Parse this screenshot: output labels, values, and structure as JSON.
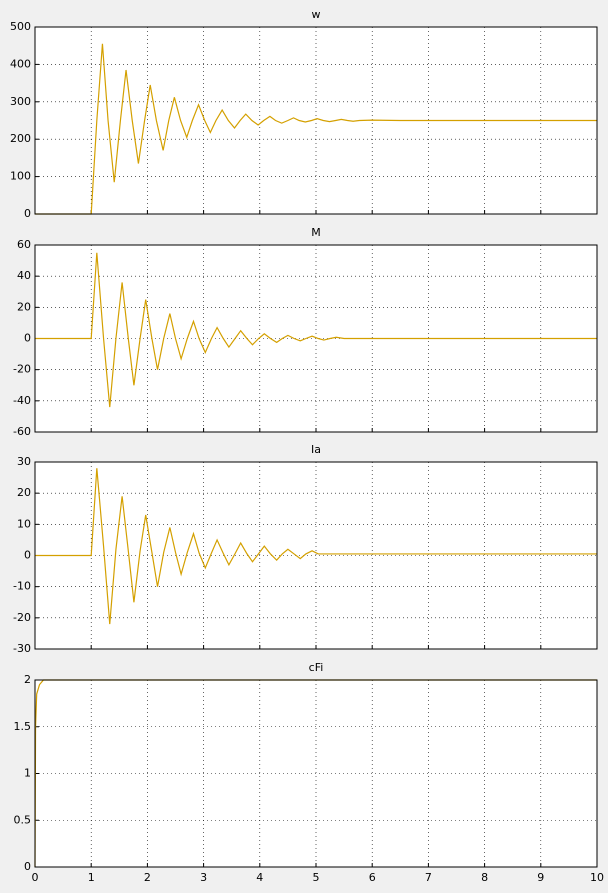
{
  "chart_data": [
    {
      "type": "line",
      "title": "w",
      "color": "#d4a000",
      "x": [
        0,
        1.0,
        1.1,
        1.2,
        1.3,
        1.41,
        1.52,
        1.62,
        1.73,
        1.84,
        1.95,
        2.05,
        2.16,
        2.28,
        2.38,
        2.48,
        2.59,
        2.7,
        2.8,
        2.91,
        3.02,
        3.12,
        3.22,
        3.33,
        3.44,
        3.55,
        3.65,
        3.75,
        3.86,
        3.97,
        4.07,
        4.18,
        4.28,
        4.39,
        4.5,
        4.6,
        4.7,
        4.81,
        4.92,
        5.02,
        5.13,
        5.24,
        5.35,
        5.45,
        5.56,
        5.66,
        5.77,
        6.0,
        6.5,
        10
      ],
      "values": [
        0,
        0,
        250,
        455,
        250,
        85,
        250,
        385,
        250,
        135,
        250,
        345,
        250,
        170,
        250,
        312,
        250,
        205,
        250,
        292,
        250,
        218,
        250,
        278,
        250,
        230,
        250,
        267,
        250,
        238,
        250,
        261,
        250,
        243,
        250,
        257,
        250,
        246,
        250,
        255,
        250,
        247,
        250,
        253,
        250,
        248,
        250,
        251,
        250,
        250
      ],
      "xlim": [
        0,
        10
      ],
      "xticks": [
        0,
        1,
        2,
        3,
        4,
        5,
        6,
        7,
        8,
        9,
        10
      ],
      "show_xtick_labels": false,
      "ylim": [
        0,
        500
      ],
      "yticks": [
        0,
        100,
        200,
        300,
        400,
        500
      ],
      "grid": true
    },
    {
      "type": "line",
      "title": "M",
      "color": "#d4a000",
      "x": [
        0,
        1.0,
        1.1,
        1.22,
        1.33,
        1.44,
        1.55,
        1.66,
        1.76,
        1.87,
        1.97,
        2.08,
        2.18,
        2.29,
        2.4,
        2.5,
        2.6,
        2.71,
        2.82,
        2.92,
        3.03,
        3.14,
        3.24,
        3.35,
        3.45,
        3.56,
        3.66,
        3.77,
        3.87,
        3.98,
        4.08,
        4.19,
        4.3,
        4.4,
        4.5,
        4.61,
        4.72,
        4.82,
        4.93,
        5.04,
        5.14,
        5.25,
        5.36,
        5.5,
        10
      ],
      "values": [
        0,
        0,
        55,
        0,
        -44,
        0,
        36,
        0,
        -30,
        0,
        25,
        0,
        -20,
        0,
        16,
        0,
        -13,
        0,
        11,
        0,
        -9,
        0,
        7,
        0,
        -5.5,
        0,
        5,
        0,
        -4,
        0,
        3,
        0,
        -2.5,
        0,
        2,
        0,
        -1.5,
        0,
        1.5,
        0,
        -1,
        0,
        0.8,
        0,
        0
      ],
      "xlim": [
        0,
        10
      ],
      "xticks": [
        0,
        1,
        2,
        3,
        4,
        5,
        6,
        7,
        8,
        9,
        10
      ],
      "show_xtick_labels": false,
      "ylim": [
        -60,
        60
      ],
      "yticks": [
        -60,
        -40,
        -20,
        0,
        20,
        40,
        60
      ],
      "grid": true
    },
    {
      "type": "line",
      "title": "Ia",
      "color": "#d4a000",
      "x": [
        0,
        1.0,
        1.1,
        1.22,
        1.33,
        1.44,
        1.55,
        1.66,
        1.76,
        1.87,
        1.97,
        2.08,
        2.18,
        2.29,
        2.4,
        2.5,
        2.6,
        2.71,
        2.82,
        2.92,
        3.03,
        3.14,
        3.24,
        3.35,
        3.45,
        3.56,
        3.66,
        3.77,
        3.87,
        3.98,
        4.08,
        4.19,
        4.3,
        4.4,
        4.5,
        4.61,
        4.72,
        4.82,
        4.93,
        5.04,
        5.5,
        10
      ],
      "values": [
        0,
        0,
        28,
        3,
        -22,
        2,
        19,
        1.5,
        -15,
        1.5,
        13,
        1,
        -10,
        1,
        9,
        1,
        -6,
        1,
        7,
        0.8,
        -4,
        0.8,
        5,
        0.7,
        -3,
        0.6,
        4,
        0.6,
        -2,
        0.6,
        3,
        0.5,
        -1.5,
        0.5,
        2,
        0.5,
        -1,
        0.5,
        1.5,
        0.5,
        0.5,
        0.5
      ],
      "xlim": [
        0,
        10
      ],
      "xticks": [
        0,
        1,
        2,
        3,
        4,
        5,
        6,
        7,
        8,
        9,
        10
      ],
      "show_xtick_labels": false,
      "ylim": [
        -30,
        30
      ],
      "yticks": [
        -30,
        -20,
        -10,
        0,
        10,
        20,
        30
      ],
      "grid": true
    },
    {
      "type": "line",
      "title": "cFi",
      "color": "#d4a000",
      "x": [
        0,
        0.01,
        0.03,
        0.08,
        0.15,
        10
      ],
      "values": [
        0,
        1.5,
        1.85,
        1.95,
        2,
        2
      ],
      "xlim": [
        0,
        10
      ],
      "xticks": [
        0,
        1,
        2,
        3,
        4,
        5,
        6,
        7,
        8,
        9,
        10
      ],
      "show_xtick_labels": true,
      "ylim": [
        0,
        2
      ],
      "yticks": [
        0,
        0.5,
        1,
        1.5,
        2
      ],
      "grid": true
    }
  ]
}
